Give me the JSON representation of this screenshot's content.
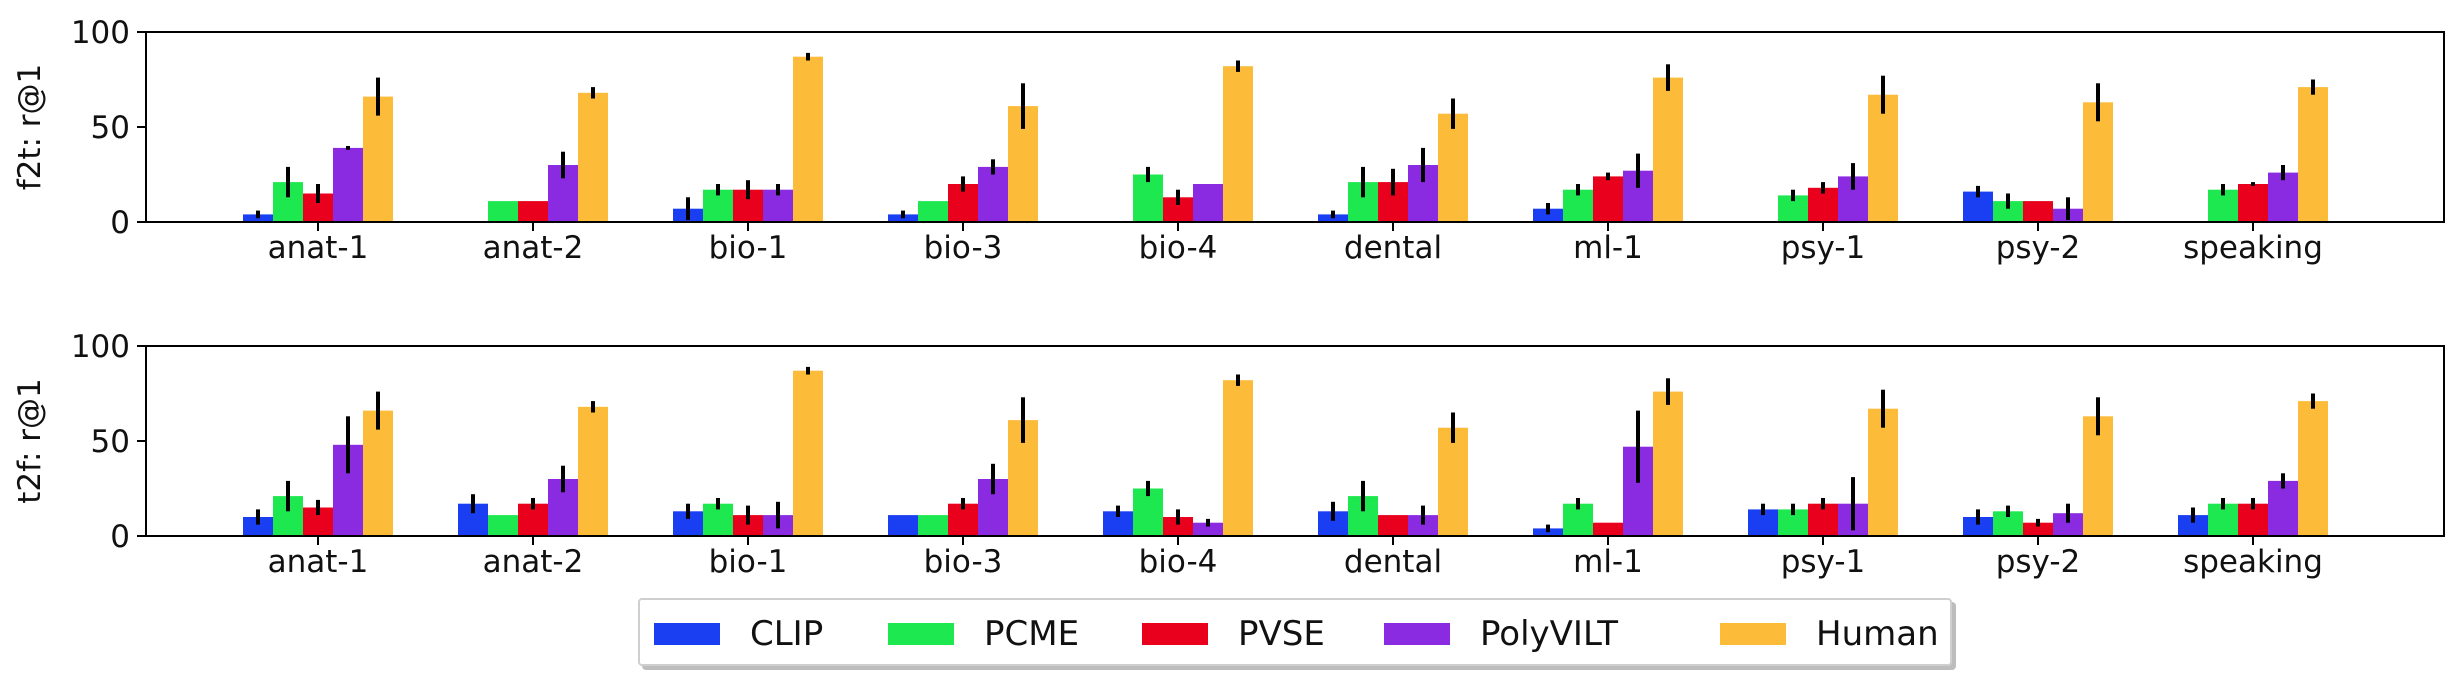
{
  "colors": {
    "CLIP": "#1a3ff2",
    "PCME": "#1ee84f",
    "PVSE": "#e8001c",
    "PolyVILT": "#8a2be2",
    "Human": "#fcbc3a"
  },
  "legend": {
    "items": [
      {
        "label": "CLIP",
        "color": "#1a3ff2"
      },
      {
        "label": "PCME",
        "color": "#1ee84f"
      },
      {
        "label": "PVSE",
        "color": "#e8001c"
      },
      {
        "label": "PolyVILT",
        "color": "#8a2be2"
      },
      {
        "label": "Human",
        "color": "#fcbc3a"
      }
    ]
  },
  "chart_data": [
    {
      "type": "bar",
      "ylabel": "f2t: r@1",
      "ylim": [
        0,
        100
      ],
      "yticks": [
        "0",
        "50",
        "100"
      ],
      "categories": [
        "anat-1",
        "anat-2",
        "bio-1",
        "bio-3",
        "bio-4",
        "dental",
        "ml-1",
        "psy-1",
        "psy-2",
        "speaking"
      ],
      "series": [
        {
          "name": "CLIP",
          "values": [
            4,
            0,
            7,
            4,
            0,
            4,
            7,
            0,
            16,
            0
          ],
          "errors": [
            2,
            0,
            6,
            2,
            0,
            2,
            3,
            0,
            3,
            0
          ]
        },
        {
          "name": "PCME",
          "values": [
            21,
            11,
            17,
            11,
            25,
            21,
            17,
            14,
            11,
            17
          ],
          "errors": [
            8,
            0,
            3,
            0,
            4,
            8,
            3,
            3,
            4,
            3
          ]
        },
        {
          "name": "PVSE",
          "values": [
            15,
            11,
            17,
            20,
            13,
            21,
            24,
            18,
            11,
            20
          ],
          "errors": [
            5,
            0,
            5,
            4,
            4,
            7,
            2,
            3,
            0,
            1
          ]
        },
        {
          "name": "PolyVILT",
          "values": [
            39,
            30,
            17,
            29,
            20,
            30,
            27,
            24,
            7,
            26
          ],
          "errors": [
            1,
            7,
            3,
            4,
            0,
            9,
            9,
            7,
            6,
            4
          ]
        },
        {
          "name": "Human",
          "values": [
            66,
            68,
            87,
            61,
            82,
            57,
            76,
            67,
            63,
            71
          ],
          "errors": [
            10,
            3,
            2,
            12,
            3,
            8,
            7,
            10,
            10,
            4
          ]
        }
      ]
    },
    {
      "type": "bar",
      "ylabel": "t2f: r@1",
      "ylim": [
        0,
        100
      ],
      "yticks": [
        "0",
        "50",
        "100"
      ],
      "categories": [
        "anat-1",
        "anat-2",
        "bio-1",
        "bio-3",
        "bio-4",
        "dental",
        "ml-1",
        "psy-1",
        "psy-2",
        "speaking"
      ],
      "series": [
        {
          "name": "CLIP",
          "values": [
            10,
            17,
            13,
            11,
            13,
            13,
            4,
            14,
            10,
            11
          ],
          "errors": [
            4,
            5,
            4,
            0,
            3,
            5,
            2,
            3,
            4,
            4
          ]
        },
        {
          "name": "PCME",
          "values": [
            21,
            11,
            17,
            11,
            25,
            21,
            17,
            14,
            13,
            17
          ],
          "errors": [
            8,
            0,
            3,
            0,
            4,
            8,
            3,
            3,
            3,
            3
          ]
        },
        {
          "name": "PVSE",
          "values": [
            15,
            17,
            11,
            17,
            10,
            11,
            7,
            17,
            7,
            17
          ],
          "errors": [
            4,
            3,
            5,
            3,
            4,
            0,
            0,
            3,
            2,
            3
          ]
        },
        {
          "name": "PolyVILT",
          "values": [
            48,
            30,
            11,
            30,
            7,
            11,
            47,
            17,
            12,
            29
          ],
          "errors": [
            15,
            7,
            7,
            8,
            2,
            5,
            19,
            14,
            5,
            4
          ]
        },
        {
          "name": "Human",
          "values": [
            66,
            68,
            87,
            61,
            82,
            57,
            76,
            67,
            63,
            71
          ],
          "errors": [
            10,
            3,
            2,
            12,
            3,
            8,
            7,
            10,
            10,
            4
          ]
        }
      ]
    }
  ]
}
